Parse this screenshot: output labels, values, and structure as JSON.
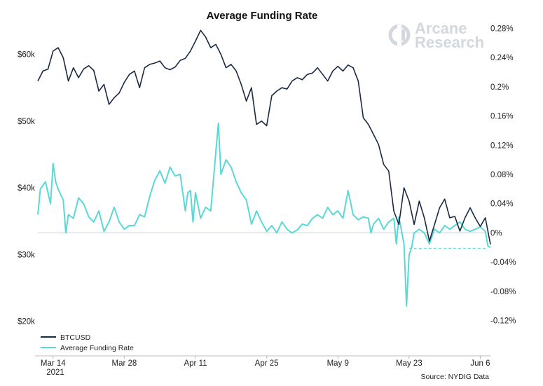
{
  "chart_data": {
    "type": "line",
    "title": "Average Funding Rate",
    "x_start_date": "2021-03-11",
    "x_end_date": "2021-06-08",
    "x_ticks": [
      {
        "label": "Mar 14",
        "day": 3
      },
      {
        "label": "Mar 28",
        "day": 17
      },
      {
        "label": "Apr 11",
        "day": 31
      },
      {
        "label": "Apr 25",
        "day": 45
      },
      {
        "label": "May 9",
        "day": 59
      },
      {
        "label": "May 23",
        "day": 73
      },
      {
        "label": "Jun 6",
        "day": 87
      }
    ],
    "year_label": "2021",
    "y_left": {
      "ylim": [
        19000,
        65000
      ],
      "ticks": [
        20000,
        30000,
        40000,
        50000,
        60000
      ],
      "tick_labels": [
        "$20k",
        "$30k",
        "$40k",
        "$50k",
        "$60k"
      ]
    },
    "y_right": {
      "ylim": [
        -0.13,
        0.29
      ],
      "ticks": [
        -0.12,
        -0.08,
        -0.04,
        0,
        0.04,
        0.08,
        0.12,
        0.16,
        0.2,
        0.24,
        0.28
      ],
      "tick_labels": [
        "-0.12%",
        "-0.08%",
        "-0.04%",
        "0%",
        "0.04%",
        "0.08%",
        "0.12%",
        "0.16%",
        "0.2%",
        "0.24%",
        "0.28%"
      ]
    },
    "zero_line_value": 0,
    "dashed_reference": {
      "value": -0.021,
      "from_day": 73,
      "to_day": 88
    },
    "series": [
      {
        "name": "BTCUSD",
        "axis": "left",
        "color": "#1b2a44",
        "points": [
          [
            0,
            56000
          ],
          [
            1,
            57500
          ],
          [
            2,
            57800
          ],
          [
            3,
            60500
          ],
          [
            4,
            61000
          ],
          [
            5,
            59500
          ],
          [
            6,
            56000
          ],
          [
            7,
            58000
          ],
          [
            8,
            56500
          ],
          [
            9,
            57800
          ],
          [
            10,
            58300
          ],
          [
            11,
            57600
          ],
          [
            12,
            54500
          ],
          [
            13,
            55500
          ],
          [
            14,
            52500
          ],
          [
            15,
            53500
          ],
          [
            16,
            54200
          ],
          [
            17,
            55800
          ],
          [
            18,
            57000
          ],
          [
            19,
            57500
          ],
          [
            20,
            55000
          ],
          [
            21,
            58000
          ],
          [
            22,
            58500
          ],
          [
            23,
            58700
          ],
          [
            24,
            59000
          ],
          [
            25,
            58000
          ],
          [
            26,
            57700
          ],
          [
            27,
            58100
          ],
          [
            28,
            59100
          ],
          [
            29,
            59400
          ],
          [
            30,
            60500
          ],
          [
            31,
            62000
          ],
          [
            32,
            63600
          ],
          [
            33,
            62600
          ],
          [
            34,
            61000
          ],
          [
            35,
            61500
          ],
          [
            36,
            60000
          ],
          [
            37,
            58000
          ],
          [
            38,
            58500
          ],
          [
            39,
            57500
          ],
          [
            40,
            55500
          ],
          [
            41,
            53000
          ],
          [
            42,
            55000
          ],
          [
            43,
            49500
          ],
          [
            44,
            50000
          ],
          [
            45,
            49300
          ],
          [
            46,
            53800
          ],
          [
            47,
            54500
          ],
          [
            48,
            55000
          ],
          [
            49,
            54800
          ],
          [
            50,
            56000
          ],
          [
            51,
            56500
          ],
          [
            52,
            56200
          ],
          [
            53,
            57000
          ],
          [
            54,
            57200
          ],
          [
            55,
            58000
          ],
          [
            56,
            57000
          ],
          [
            57,
            56000
          ],
          [
            58,
            57500
          ],
          [
            59,
            58200
          ],
          [
            60,
            57500
          ],
          [
            61,
            58400
          ],
          [
            62,
            58000
          ],
          [
            63,
            56000
          ],
          [
            64,
            50500
          ],
          [
            65,
            49500
          ],
          [
            66,
            48000
          ],
          [
            67,
            46500
          ],
          [
            68,
            43500
          ],
          [
            69,
            42500
          ],
          [
            70,
            36500
          ],
          [
            71,
            34500
          ],
          [
            72,
            40000
          ],
          [
            73,
            38000
          ],
          [
            74,
            34500
          ],
          [
            75,
            38000
          ],
          [
            76,
            35500
          ],
          [
            77,
            32000
          ],
          [
            78,
            34500
          ],
          [
            79,
            37000
          ],
          [
            80,
            38300
          ],
          [
            81,
            35500
          ],
          [
            82,
            35700
          ],
          [
            83,
            33500
          ],
          [
            84,
            35500
          ],
          [
            85,
            37000
          ],
          [
            86,
            35500
          ],
          [
            87,
            34200
          ],
          [
            88,
            35500
          ],
          [
            89,
            31500
          ]
        ]
      },
      {
        "name": "Average Funding Rate",
        "axis": "right",
        "color": "#5ad8d6",
        "points": [
          [
            0,
            0.025
          ],
          [
            0.5,
            0.06
          ],
          [
            1,
            0.065
          ],
          [
            1.5,
            0.07
          ],
          [
            2,
            0.055
          ],
          [
            2.5,
            0.04
          ],
          [
            3,
            0.095
          ],
          [
            3.5,
            0.07
          ],
          [
            4,
            0.06
          ],
          [
            5,
            0.045
          ],
          [
            5.5,
            0.0
          ],
          [
            6,
            0.025
          ],
          [
            7,
            0.02
          ],
          [
            8,
            0.048
          ],
          [
            9,
            0.04
          ],
          [
            10,
            0.022
          ],
          [
            11,
            0.015
          ],
          [
            12,
            0.03
          ],
          [
            13,
            0.002
          ],
          [
            14,
            0.015
          ],
          [
            15,
            0.035
          ],
          [
            16,
            0.015
          ],
          [
            17,
            0.005
          ],
          [
            18,
            0.01
          ],
          [
            19,
            0.01
          ],
          [
            20,
            0.025
          ],
          [
            21,
            0.022
          ],
          [
            22,
            0.05
          ],
          [
            23,
            0.072
          ],
          [
            24,
            0.085
          ],
          [
            25,
            0.068
          ],
          [
            26,
            0.09
          ],
          [
            27,
            0.078
          ],
          [
            28,
            0.08
          ],
          [
            29,
            0.03
          ],
          [
            29.5,
            0.055
          ],
          [
            30,
            0.058
          ],
          [
            30.5,
            0.015
          ],
          [
            31,
            0.055
          ],
          [
            32,
            0.02
          ],
          [
            33,
            0.035
          ],
          [
            34,
            0.03
          ],
          [
            35,
            0.11
          ],
          [
            35.5,
            0.15
          ],
          [
            36,
            0.08
          ],
          [
            37,
            0.1
          ],
          [
            38,
            0.09
          ],
          [
            39,
            0.07
          ],
          [
            40,
            0.055
          ],
          [
            41,
            0.045
          ],
          [
            42,
            0.012
          ],
          [
            43,
            0.03
          ],
          [
            44,
            0.015
          ],
          [
            45,
            0.002
          ],
          [
            46,
            0.01
          ],
          [
            47,
            0.0
          ],
          [
            48,
            0.015
          ],
          [
            49,
            0.005
          ],
          [
            50,
            0.0
          ],
          [
            51,
            0.004
          ],
          [
            52,
            0.012
          ],
          [
            53,
            0.01
          ],
          [
            54,
            0.02
          ],
          [
            55,
            0.025
          ],
          [
            56,
            0.02
          ],
          [
            57,
            0.035
          ],
          [
            58,
            0.025
          ],
          [
            59,
            0.03
          ],
          [
            60,
            0.02
          ],
          [
            61,
            0.058
          ],
          [
            62,
            0.025
          ],
          [
            63,
            0.018
          ],
          [
            64,
            0.022
          ],
          [
            65,
            0.02
          ],
          [
            65.5,
            0.0
          ],
          [
            66,
            0.012
          ],
          [
            67,
            0.02
          ],
          [
            68,
            0.005
          ],
          [
            69,
            0.015
          ],
          [
            70,
            0.02
          ],
          [
            70.5,
            -0.015
          ],
          [
            71,
            0.022
          ],
          [
            72,
            -0.015
          ],
          [
            72.5,
            -0.1
          ],
          [
            73,
            -0.03
          ],
          [
            73.5,
            -0.02
          ],
          [
            74,
            0.0
          ],
          [
            75,
            0.005
          ],
          [
            76,
            0.0
          ],
          [
            77,
            -0.015
          ],
          [
            78,
            0.005
          ],
          [
            79,
            0.0
          ],
          [
            80,
            0.01
          ],
          [
            81,
            0.005
          ],
          [
            82,
            0.01
          ],
          [
            83,
            0.015
          ],
          [
            84,
            0.005
          ],
          [
            85,
            0.002
          ],
          [
            86,
            0.005
          ],
          [
            87,
            0.008
          ],
          [
            88,
            0.002
          ],
          [
            88.5,
            -0.018
          ],
          [
            89,
            -0.02
          ]
        ]
      }
    ],
    "legend": [
      "BTCUSD",
      "Average Funding Rate"
    ],
    "source": "Source: NYDIG Data"
  },
  "logo": {
    "line1": "Arcane",
    "line2": "Research"
  },
  "colors": {
    "btc": "#1b2a44",
    "funding": "#5ad8d6",
    "axis": "#b8bcc2",
    "logo": "#d2d8dd"
  }
}
